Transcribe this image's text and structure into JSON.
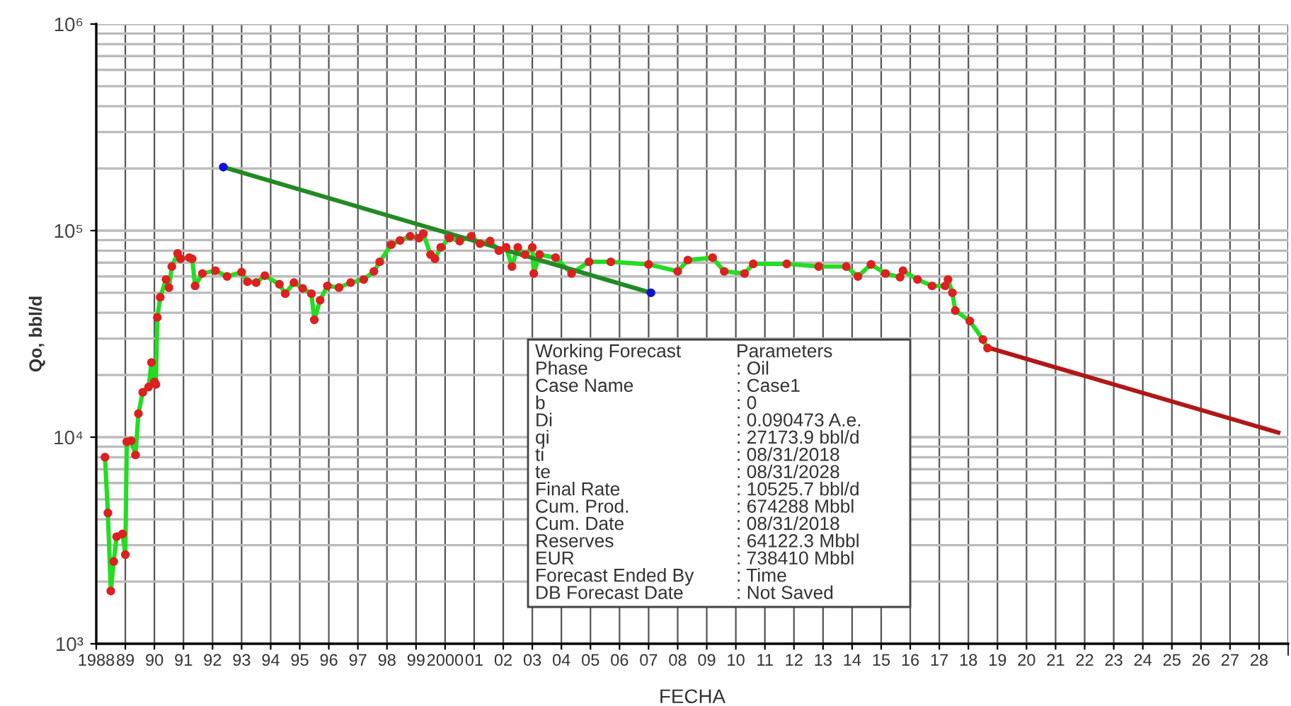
{
  "chart_data": {
    "type": "line",
    "xlabel": "FECHA",
    "ylabel": "Qo, bbl/d",
    "log": "y",
    "grid": true,
    "legend": false,
    "xlim": [
      1988,
      2029
    ],
    "ylim": [
      1000,
      1000000
    ],
    "yticks": [
      {
        "value": 1000,
        "label": "10³"
      },
      {
        "value": 10000,
        "label": "10⁴"
      },
      {
        "value": 100000,
        "label": "10⁵"
      },
      {
        "value": 1000000,
        "label": "10⁶"
      }
    ],
    "xticks": [
      1988,
      {
        "value": 1989,
        "label": "89"
      },
      {
        "value": 1990,
        "label": "90"
      },
      {
        "value": 1991,
        "label": "91"
      },
      {
        "value": 1992,
        "label": "92"
      },
      {
        "value": 1993,
        "label": "93"
      },
      {
        "value": 1994,
        "label": "94"
      },
      {
        "value": 1995,
        "label": "95"
      },
      {
        "value": 1996,
        "label": "96"
      },
      {
        "value": 1997,
        "label": "97"
      },
      {
        "value": 1998,
        "label": "98"
      },
      {
        "value": 1999,
        "label": "99"
      },
      2000,
      {
        "value": 2001,
        "label": "01"
      },
      {
        "value": 2002,
        "label": "02"
      },
      {
        "value": 2003,
        "label": "03"
      },
      {
        "value": 2004,
        "label": "04"
      },
      {
        "value": 2005,
        "label": "05"
      },
      {
        "value": 2006,
        "label": "06"
      },
      {
        "value": 2007,
        "label": "07"
      },
      {
        "value": 2008,
        "label": "08"
      },
      {
        "value": 2009,
        "label": "09"
      },
      {
        "value": 2010,
        "label": "10"
      },
      {
        "value": 2011,
        "label": "11"
      },
      {
        "value": 2012,
        "label": "12"
      },
      {
        "value": 2013,
        "label": "13"
      },
      {
        "value": 2014,
        "label": "14"
      },
      {
        "value": 2015,
        "label": "15"
      },
      {
        "value": 2016,
        "label": "16"
      },
      {
        "value": 2017,
        "label": "17"
      },
      {
        "value": 2018,
        "label": "18"
      },
      {
        "value": 2019,
        "label": "19"
      },
      {
        "value": 2020,
        "label": "20"
      },
      {
        "value": 2021,
        "label": "21"
      },
      {
        "value": 2022,
        "label": "22"
      },
      {
        "value": 2023,
        "label": "23"
      },
      {
        "value": 2024,
        "label": "24"
      },
      {
        "value": 2025,
        "label": "25"
      },
      {
        "value": 2026,
        "label": "26"
      },
      {
        "value": 2027,
        "label": "27"
      },
      {
        "value": 2028,
        "label": "28"
      }
    ],
    "series": [
      {
        "color": "#22dd22",
        "marker": "none",
        "line_style": "solid",
        "x": [
          1988.3,
          1988.4,
          1988.5,
          1988.6,
          1988.7,
          1988.9,
          1989.0,
          1989.05,
          1989.2,
          1989.35,
          1989.45,
          1989.6,
          1989.8,
          1989.9,
          1990.0,
          1990.05,
          1990.1,
          1990.2,
          1990.4,
          1990.5,
          1990.6,
          1990.8,
          1990.9,
          1991.2,
          1991.3,
          1991.4,
          1991.65,
          1992.1,
          1992.5,
          1993.0,
          1993.2,
          1993.5,
          1993.8,
          1994.3,
          1994.5,
          1994.8,
          1995.1,
          1995.4,
          1995.5,
          1995.7,
          1995.95,
          1996.35,
          1996.75,
          1997.2,
          1997.55,
          1997.75,
          1998.15,
          1998.45,
          1998.8,
          1999.1,
          1999.25,
          1999.5,
          1999.65,
          1999.85,
          2000.15,
          2000.5,
          2000.9,
          2001.2,
          2001.55,
          2001.85,
          2002.1,
          2002.3,
          2002.5,
          2002.75,
          2003.0,
          2003.05,
          2003.25,
          2003.8,
          2004.35,
          2004.95,
          2005.7,
          2007.0,
          2008.0,
          2008.35,
          2009.2,
          2009.6,
          2010.3,
          2010.6,
          2011.75,
          2012.85,
          2013.8,
          2014.2,
          2014.65,
          2015.15,
          2015.65,
          2015.75,
          2016.25,
          2016.75,
          2017.2,
          2017.3,
          2017.45,
          2017.55,
          2018.05,
          2018.5,
          2018.66
        ],
        "values": [
          8000,
          4300,
          1800,
          2500,
          3300,
          3400,
          2700,
          9500,
          9600,
          8200,
          13000,
          16500,
          17500,
          23000,
          18500,
          18000,
          38000,
          47600,
          58000,
          53000,
          67000,
          77500,
          73000,
          74000,
          73000,
          54000,
          62000,
          64000,
          60000,
          63000,
          56600,
          56000,
          60500,
          55000,
          49500,
          56000,
          52500,
          49500,
          37000,
          46000,
          54000,
          53000,
          56000,
          58000,
          63500,
          70600,
          85500,
          89600,
          94000,
          92000,
          96700,
          76500,
          73000,
          83000,
          92000,
          89000,
          94000,
          86500,
          89000,
          80000,
          83000,
          67000,
          83000,
          76500,
          83000,
          62000,
          76500,
          74000,
          62000,
          70600,
          70600,
          68600,
          63500,
          72000,
          74000,
          63500,
          62000,
          69000,
          69000,
          67000,
          67000,
          60000,
          68600,
          62000,
          59500,
          64000,
          58000,
          54000,
          54000,
          58000,
          50000,
          41000,
          36500,
          29700,
          27000
        ]
      },
      {
        "type": "scatter",
        "color": "#dd2020",
        "marker": "circle",
        "x": [
          1988.3,
          1988.4,
          1988.5,
          1988.6,
          1988.7,
          1988.9,
          1989.0,
          1989.05,
          1989.2,
          1989.35,
          1989.45,
          1989.6,
          1989.8,
          1989.9,
          1990.0,
          1990.05,
          1990.1,
          1990.2,
          1990.4,
          1990.5,
          1990.6,
          1990.8,
          1990.9,
          1991.2,
          1991.3,
          1991.4,
          1991.65,
          1992.1,
          1992.5,
          1993.0,
          1993.2,
          1993.5,
          1993.8,
          1994.3,
          1994.5,
          1994.8,
          1995.1,
          1995.4,
          1995.5,
          1995.7,
          1995.95,
          1996.35,
          1996.75,
          1997.2,
          1997.55,
          1997.75,
          1998.15,
          1998.45,
          1998.8,
          1999.1,
          1999.25,
          1999.5,
          1999.65,
          1999.85,
          2000.15,
          2000.5,
          2000.9,
          2001.2,
          2001.55,
          2001.85,
          2002.1,
          2002.3,
          2002.5,
          2002.75,
          2003.0,
          2003.05,
          2003.25,
          2003.8,
          2004.35,
          2004.95,
          2005.7,
          2007.0,
          2008.0,
          2008.35,
          2009.2,
          2009.6,
          2010.3,
          2010.6,
          2011.75,
          2012.85,
          2013.8,
          2014.2,
          2014.65,
          2015.15,
          2015.65,
          2015.75,
          2016.25,
          2016.75,
          2017.2,
          2017.3,
          2017.45,
          2017.55,
          2018.05,
          2018.5,
          2018.66
        ],
        "values": [
          8000,
          4300,
          1800,
          2500,
          3300,
          3400,
          2700,
          9500,
          9600,
          8200,
          13000,
          16500,
          17500,
          23000,
          18500,
          18000,
          38000,
          47600,
          58000,
          53000,
          67000,
          77500,
          73000,
          74000,
          73000,
          54000,
          62000,
          64000,
          60000,
          63000,
          56600,
          56000,
          60500,
          55000,
          49500,
          56000,
          52500,
          49500,
          37000,
          46000,
          54000,
          53000,
          56000,
          58000,
          63500,
          70600,
          85500,
          89600,
          94000,
          92000,
          96700,
          76500,
          73000,
          83000,
          92000,
          89000,
          94000,
          86500,
          89000,
          80000,
          83000,
          67000,
          83000,
          76500,
          83000,
          62000,
          76500,
          74000,
          62000,
          70600,
          70600,
          68600,
          63500,
          72000,
          74000,
          63500,
          62000,
          69000,
          69000,
          67000,
          67000,
          60000,
          68600,
          62000,
          59500,
          64000,
          58000,
          54000,
          54000,
          58000,
          50000,
          41000,
          36500,
          29700,
          27000
        ]
      },
      {
        "color": "#228b22",
        "marker": "none",
        "line_style": "solid",
        "x": [
          1992.37,
          2007.08
        ],
        "values": [
          203000,
          50000
        ]
      },
      {
        "type": "scatter",
        "color": "#1010dd",
        "marker": "circle",
        "x": [
          1992.37,
          2007.08
        ],
        "values": [
          203000,
          50000
        ]
      },
      {
        "color": "#b01818",
        "marker": "none",
        "line_style": "solid",
        "x": [
          2018.66,
          2028.66
        ],
        "values": [
          27174,
          10526
        ]
      }
    ],
    "annotations": [
      "Working Forecast\tParameters",
      "Phase\t: Oil",
      "Case Name\t: Case1",
      "b\t: 0",
      "Di\t: 0.090473 A.e.",
      "qi\t: 27173.9 bbl/d",
      "ti\t: 08/31/2018",
      "te\t: 08/31/2028",
      "Final Rate\t: 10525.7 bbl/d",
      "Cum. Prod.\t: 674288 Mbbl",
      "Cum. Date\t: 08/31/2018",
      "Reserves\t: 64122.3 Mbbl",
      "EUR\t: 738410 Mbbl",
      "Forecast Ended By\t: Time",
      "DB Forecast Date\t: Not Saved"
    ]
  }
}
